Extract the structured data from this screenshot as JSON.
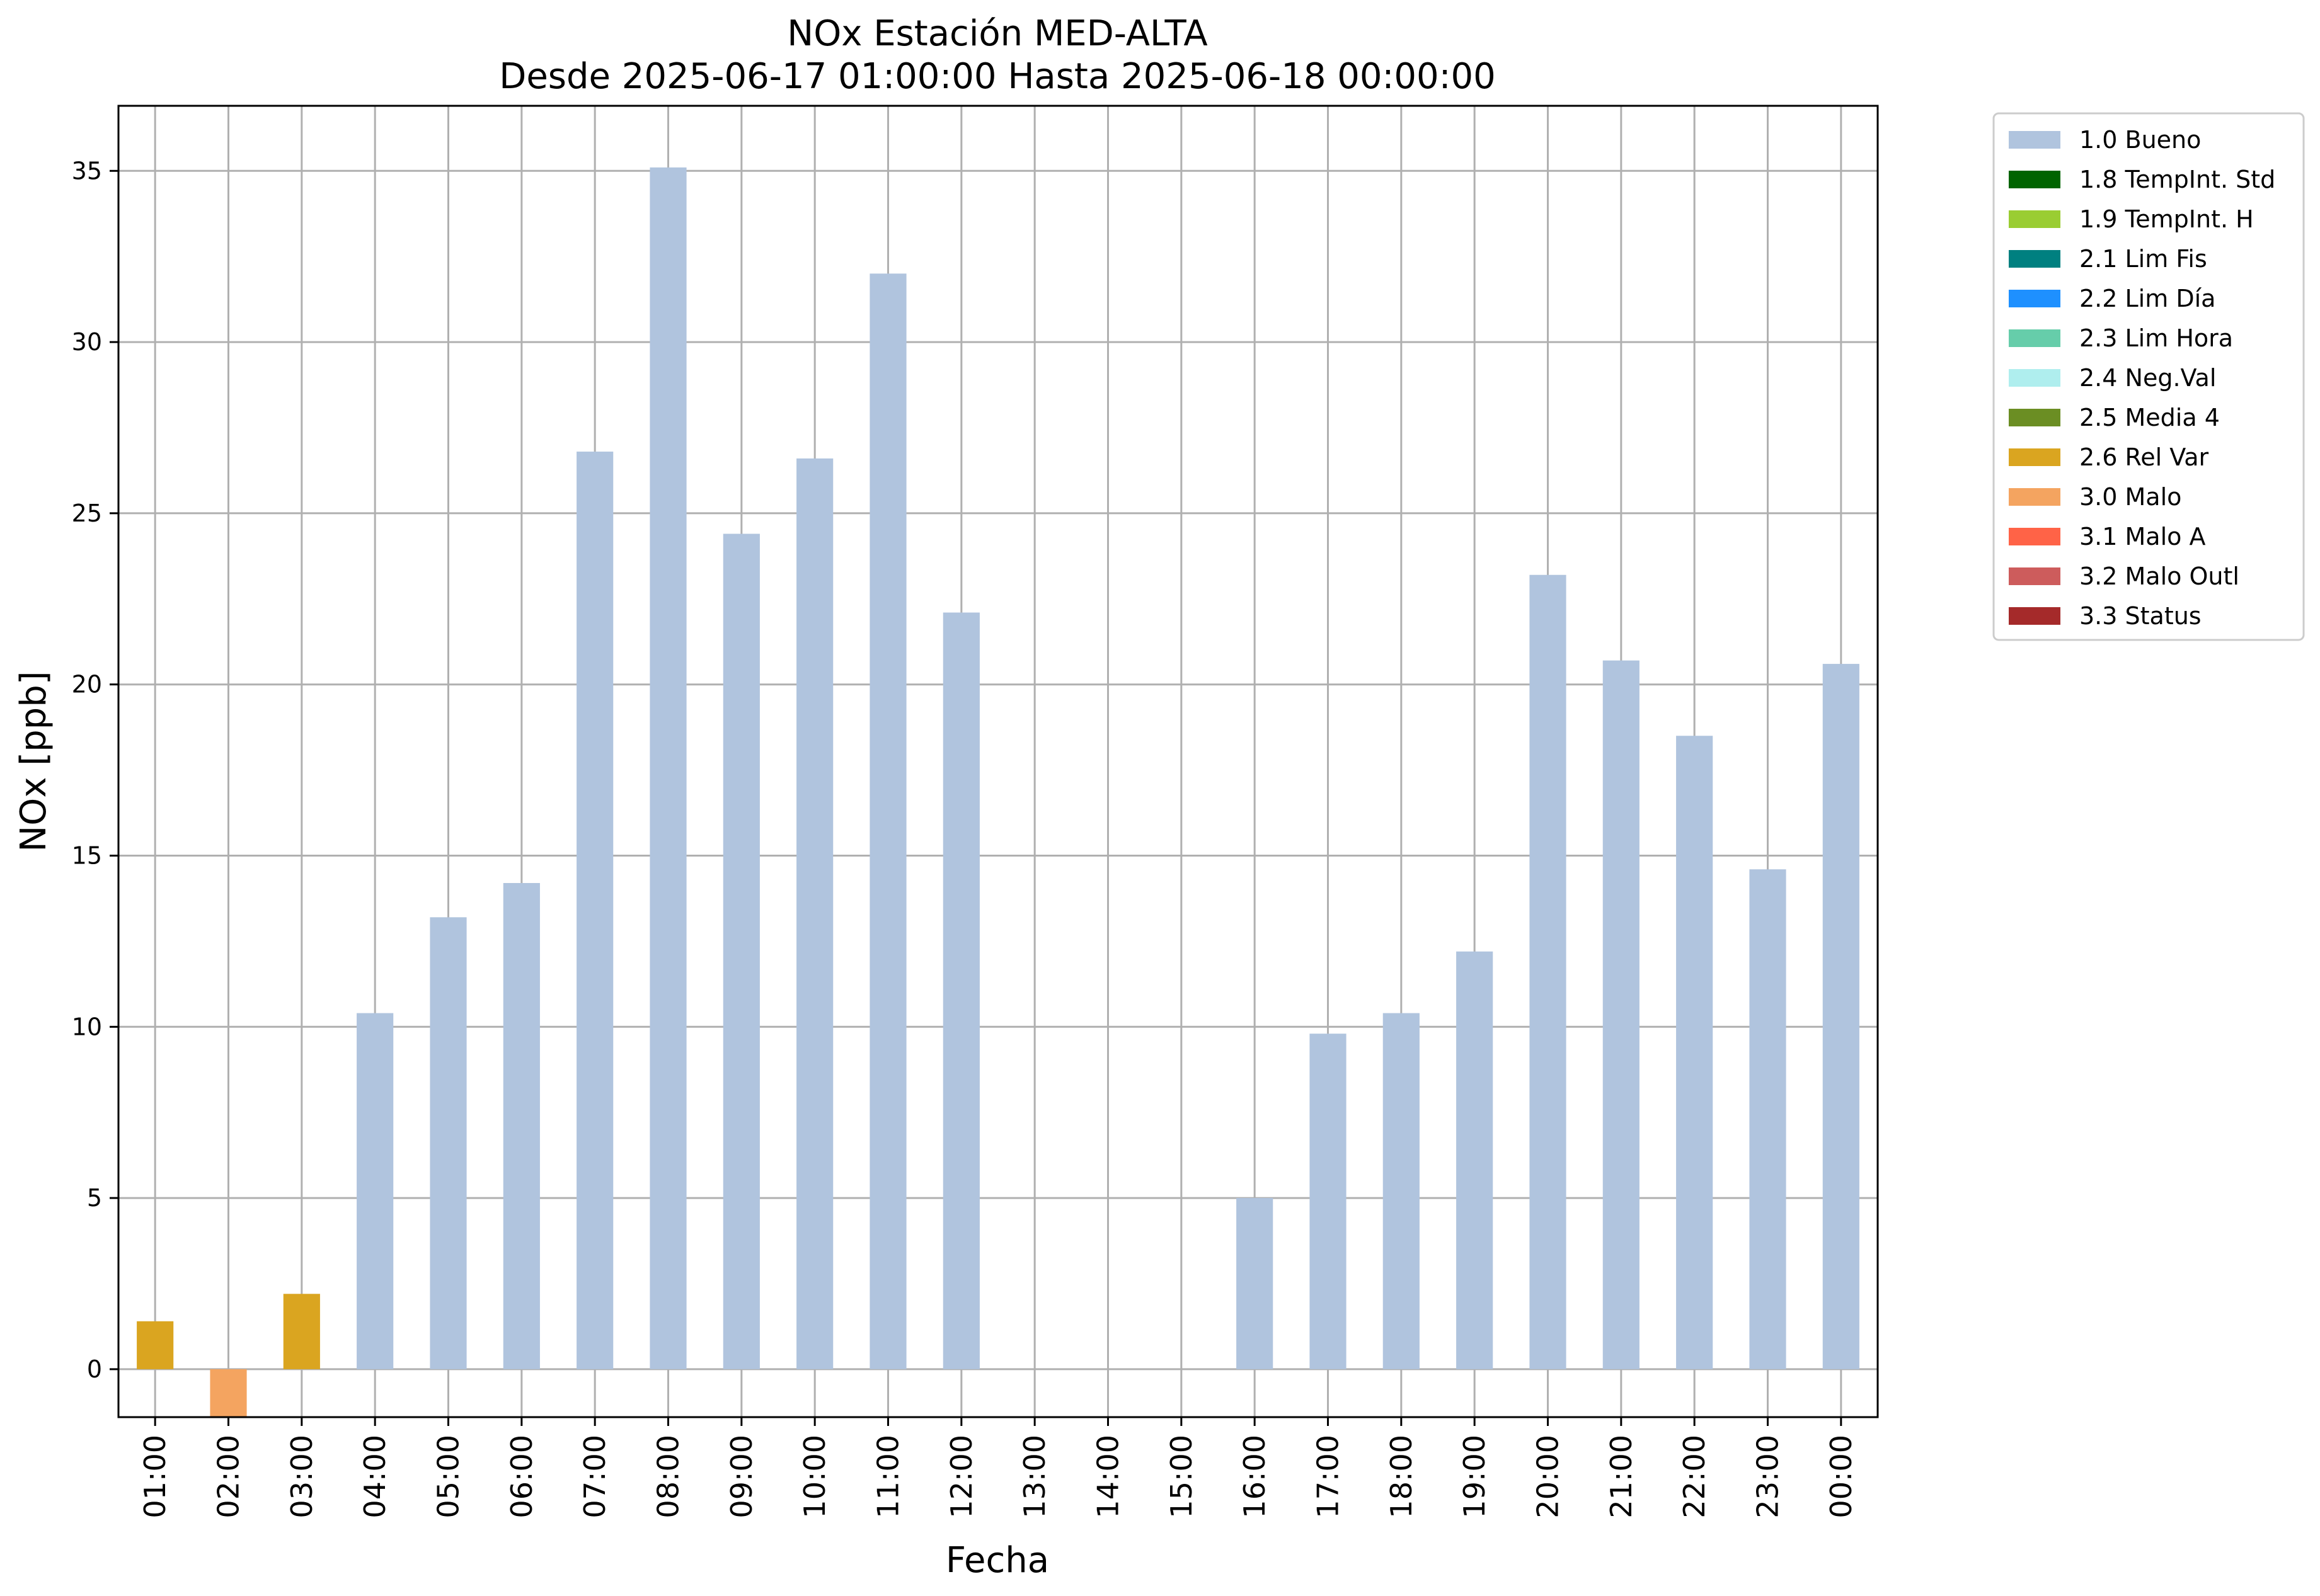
{
  "chart_data": {
    "type": "bar",
    "title": "NOx Estación MED-ALTA",
    "subtitle": "Desde 2025-06-17 01:00:00 Hasta 2025-06-18 00:00:00",
    "xlabel": "Fecha",
    "ylabel": "NOx [ppb]",
    "ylim": [
      -1.4,
      36.9
    ],
    "yticks": [
      0,
      5,
      10,
      15,
      20,
      25,
      30,
      35
    ],
    "grid": true,
    "legend_position": "outside right",
    "categories": [
      "01:00",
      "02:00",
      "03:00",
      "04:00",
      "05:00",
      "06:00",
      "07:00",
      "08:00",
      "09:00",
      "10:00",
      "11:00",
      "12:00",
      "13:00",
      "14:00",
      "15:00",
      "16:00",
      "17:00",
      "18:00",
      "19:00",
      "20:00",
      "21:00",
      "22:00",
      "23:00",
      "00:00"
    ],
    "values": [
      1.4,
      -1.4,
      2.2,
      10.4,
      13.2,
      14.2,
      26.8,
      35.1,
      24.4,
      26.6,
      32.0,
      22.1,
      null,
      null,
      null,
      5.0,
      9.8,
      10.4,
      12.2,
      23.2,
      20.7,
      18.5,
      14.6,
      20.6
    ],
    "flags": [
      "2.6 Rel Var",
      "3.0 Malo",
      "2.6 Rel Var",
      "1.0 Bueno",
      "1.0 Bueno",
      "1.0 Bueno",
      "1.0 Bueno",
      "1.0 Bueno",
      "1.0 Bueno",
      "1.0 Bueno",
      "1.0 Bueno",
      "1.0 Bueno",
      null,
      null,
      null,
      "1.0 Bueno",
      "1.0 Bueno",
      "1.0 Bueno",
      "1.0 Bueno",
      "1.0 Bueno",
      "1.0 Bueno",
      "1.0 Bueno",
      "1.0 Bueno",
      "1.0 Bueno"
    ],
    "legend": [
      {
        "label": "1.0 Bueno",
        "color": "#b0c4de"
      },
      {
        "label": "1.8 TempInt. Std",
        "color": "#006400"
      },
      {
        "label": "1.9 TempInt. H",
        "color": "#9acd32"
      },
      {
        "label": "2.1 Lim Fis",
        "color": "#008080"
      },
      {
        "label": "2.2 Lim Día",
        "color": "#1e90ff"
      },
      {
        "label": "2.3 Lim Hora",
        "color": "#66cdaa"
      },
      {
        "label": "2.4 Neg.Val",
        "color": "#afeeee"
      },
      {
        "label": "2.5 Media 4",
        "color": "#6b8e23"
      },
      {
        "label": "2.6 Rel Var",
        "color": "#daa520"
      },
      {
        "label": "3.0 Malo",
        "color": "#f4a460"
      },
      {
        "label": "3.1 Malo A",
        "color": "#ff6347"
      },
      {
        "label": "3.2 Malo Outl",
        "color": "#cd5c5c"
      },
      {
        "label": "3.3 Status",
        "color": "#a52a2a"
      }
    ]
  }
}
